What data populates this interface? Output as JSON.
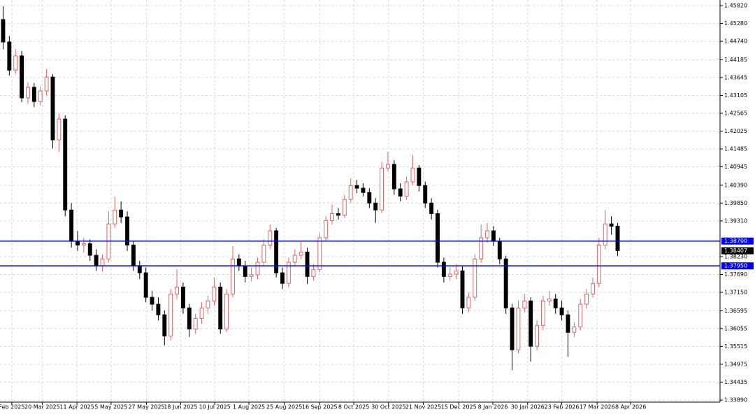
{
  "chart_data": {
    "type": "candlestick",
    "up_color": "#e06666",
    "down_color": "#000000",
    "grid": true,
    "xlim": [
      -0.5,
      115.5
    ],
    "ylim": [
      1.3383,
      1.4599
    ],
    "xticks": [
      {
        "value": 1.4,
        "label": "Feb 2025"
      },
      {
        "value": 6.3,
        "label": "20 Mar 2025"
      },
      {
        "value": 11.9,
        "label": "11 Apr 2025"
      },
      {
        "value": 17.4,
        "label": "5 May 2025"
      },
      {
        "value": 23.1,
        "label": "27 May 2025"
      },
      {
        "value": 28.6,
        "label": "18 Jun 2025"
      },
      {
        "value": 34.1,
        "label": "10 Jul 2025"
      },
      {
        "value": 39.6,
        "label": "1 Aug 2025"
      },
      {
        "value": 45.3,
        "label": "25 Aug 2025"
      },
      {
        "value": 51,
        "label": "16 Sep 2025"
      },
      {
        "value": 56.5,
        "label": "8 Oct 2025"
      },
      {
        "value": 62.1,
        "label": "30 Oct 2025"
      },
      {
        "value": 67.7,
        "label": "21 Nov 2025"
      },
      {
        "value": 73.4,
        "label": "15 Dec 2025"
      },
      {
        "value": 78.9,
        "label": "8 Jan 2026"
      },
      {
        "value": 84.5,
        "label": "30 Jan 2026"
      },
      {
        "value": 90,
        "label": "23 Feb 2026"
      },
      {
        "value": 95.7,
        "label": "17 Mar 2026"
      },
      {
        "value": 101.1,
        "label": "8 Apr 2026"
      }
    ],
    "yticks": [
      {
        "value": 1.4582,
        "label": "1.45820"
      },
      {
        "value": 1.4528,
        "label": "1.45280"
      },
      {
        "value": 1.4474,
        "label": "1.44740"
      },
      {
        "value": 1.44185,
        "label": "1.44185"
      },
      {
        "value": 1.43645,
        "label": "1.43645"
      },
      {
        "value": 1.43105,
        "label": "1.43105"
      },
      {
        "value": 1.42565,
        "label": "1.42565"
      },
      {
        "value": 1.42025,
        "label": "1.42025"
      },
      {
        "value": 1.41485,
        "label": "1.41485"
      },
      {
        "value": 1.40945,
        "label": "1.40945"
      },
      {
        "value": 1.4039,
        "label": "1.40390"
      },
      {
        "value": 1.3985,
        "label": "1.39850"
      },
      {
        "value": 1.3931,
        "label": "1.39310"
      },
      {
        "value": 1.3823,
        "label": "1.38230"
      },
      {
        "value": 1.3769,
        "label": "1.37690"
      },
      {
        "value": 1.3715,
        "label": "1.37150"
      },
      {
        "value": 1.36595,
        "label": "1.36595"
      },
      {
        "value": 1.36055,
        "label": "1.36055"
      },
      {
        "value": 1.35515,
        "label": "1.35515"
      },
      {
        "value": 1.34975,
        "label": "1.34975"
      },
      {
        "value": 1.34435,
        "label": "1.34435"
      },
      {
        "value": 1.3389,
        "label": "1.33890"
      }
    ],
    "hlines": [
      {
        "value": 1.387,
        "label": "1.38700",
        "color": "#0000ff"
      },
      {
        "value": 1.3795,
        "label": "1.37950",
        "color": "#0000ff"
      }
    ],
    "current_price": {
      "value": 1.38407,
      "label": "1.38407",
      "color": "#000000"
    },
    "ohlc": [
      [
        1.454,
        1.458,
        1.445,
        1.4472
      ],
      [
        1.4472,
        1.449,
        1.437,
        1.4387
      ],
      [
        1.4387,
        1.445,
        1.4375,
        1.443
      ],
      [
        1.443,
        1.4445,
        1.429,
        1.4303
      ],
      [
        1.4303,
        1.435,
        1.4285,
        1.4335
      ],
      [
        1.4335,
        1.4348,
        1.4275,
        1.4292
      ],
      [
        1.4292,
        1.4338,
        1.428,
        1.4324
      ],
      [
        1.4324,
        1.439,
        1.431,
        1.4366
      ],
      [
        1.4366,
        1.4375,
        1.415,
        1.4176
      ],
      [
        1.4176,
        1.4255,
        1.414,
        1.4239
      ],
      [
        1.4239,
        1.425,
        1.3945,
        1.3964
      ],
      [
        1.3964,
        1.3985,
        1.385,
        1.3869
      ],
      [
        1.3869,
        1.39,
        1.384,
        1.3858
      ],
      [
        1.3858,
        1.388,
        1.3835,
        1.3862
      ],
      [
        1.3862,
        1.3875,
        1.381,
        1.3827
      ],
      [
        1.3827,
        1.3845,
        1.378,
        1.3795
      ],
      [
        1.3795,
        1.383,
        1.3778,
        1.3816
      ],
      [
        1.3816,
        1.396,
        1.3805,
        1.3922
      ],
      [
        1.3922,
        1.4005,
        1.391,
        1.3964
      ],
      [
        1.3964,
        1.399,
        1.3925,
        1.3943
      ],
      [
        1.3943,
        1.396,
        1.384,
        1.3858
      ],
      [
        1.3858,
        1.387,
        1.378,
        1.3795
      ],
      [
        1.3795,
        1.381,
        1.3755,
        1.3774
      ],
      [
        1.3774,
        1.379,
        1.3685,
        1.37
      ],
      [
        1.37,
        1.372,
        1.366,
        1.3679
      ],
      [
        1.3679,
        1.37,
        1.363,
        1.3647
      ],
      [
        1.3647,
        1.366,
        1.3555,
        1.3583
      ],
      [
        1.3583,
        1.3725,
        1.357,
        1.371
      ],
      [
        1.371,
        1.3785,
        1.3695,
        1.3731
      ],
      [
        1.3731,
        1.3745,
        1.365,
        1.3668
      ],
      [
        1.3668,
        1.368,
        1.358,
        1.3604
      ],
      [
        1.3604,
        1.365,
        1.359,
        1.3636
      ],
      [
        1.3636,
        1.3685,
        1.362,
        1.3668
      ],
      [
        1.3668,
        1.3705,
        1.365,
        1.3689
      ],
      [
        1.3689,
        1.376,
        1.3675,
        1.3731
      ],
      [
        1.3731,
        1.3745,
        1.359,
        1.3604
      ],
      [
        1.3604,
        1.3725,
        1.3595,
        1.371
      ],
      [
        1.371,
        1.3855,
        1.37,
        1.3816
      ],
      [
        1.3816,
        1.383,
        1.378,
        1.3795
      ],
      [
        1.3795,
        1.381,
        1.3745,
        1.3763
      ],
      [
        1.3763,
        1.379,
        1.3748,
        1.3768
      ],
      [
        1.3768,
        1.382,
        1.3755,
        1.3806
      ],
      [
        1.3806,
        1.3875,
        1.3795,
        1.3858
      ],
      [
        1.3858,
        1.392,
        1.3845,
        1.3901
      ],
      [
        1.3901,
        1.391,
        1.376,
        1.3774
      ],
      [
        1.3774,
        1.379,
        1.3725,
        1.3742
      ],
      [
        1.3742,
        1.382,
        1.373,
        1.3806
      ],
      [
        1.3806,
        1.3845,
        1.3795,
        1.3827
      ],
      [
        1.3827,
        1.387,
        1.3815,
        1.3837
      ],
      [
        1.3837,
        1.385,
        1.374,
        1.3763
      ],
      [
        1.3763,
        1.38,
        1.375,
        1.3784
      ],
      [
        1.3784,
        1.3895,
        1.3775,
        1.388
      ],
      [
        1.388,
        1.3945,
        1.387,
        1.3932
      ],
      [
        1.3932,
        1.398,
        1.392,
        1.3953
      ],
      [
        1.3953,
        1.397,
        1.3935,
        1.3948
      ],
      [
        1.3948,
        1.401,
        1.394,
        1.3996
      ],
      [
        1.3996,
        1.406,
        1.3985,
        1.4038
      ],
      [
        1.4038,
        1.4055,
        1.4015,
        1.403
      ],
      [
        1.403,
        1.4045,
        1.4005,
        1.4017
      ],
      [
        1.4017,
        1.403,
        1.397,
        1.3985
      ],
      [
        1.3985,
        1.4,
        1.3925,
        1.3964
      ],
      [
        1.3964,
        1.411,
        1.3955,
        1.4091
      ],
      [
        1.4091,
        1.414,
        1.408,
        1.4102
      ],
      [
        1.4102,
        1.4115,
        1.401,
        1.4028
      ],
      [
        1.4028,
        1.4045,
        1.399,
        1.4006
      ],
      [
        1.4006,
        1.4065,
        1.3995,
        1.4049
      ],
      [
        1.4049,
        1.413,
        1.404,
        1.4091
      ],
      [
        1.4091,
        1.41,
        1.402,
        1.4038
      ],
      [
        1.4038,
        1.405,
        1.397,
        1.3985
      ],
      [
        1.3985,
        1.4,
        1.3935,
        1.3953
      ],
      [
        1.3953,
        1.3965,
        1.379,
        1.3806
      ],
      [
        1.3806,
        1.382,
        1.3745,
        1.3763
      ],
      [
        1.3763,
        1.379,
        1.375,
        1.377
      ],
      [
        1.377,
        1.38,
        1.3755,
        1.378
      ],
      [
        1.378,
        1.3795,
        1.365,
        1.3668
      ],
      [
        1.3668,
        1.3715,
        1.3655,
        1.37
      ],
      [
        1.37,
        1.383,
        1.369,
        1.3816
      ],
      [
        1.3816,
        1.392,
        1.3805,
        1.388
      ],
      [
        1.388,
        1.3925,
        1.3865,
        1.3901
      ],
      [
        1.3901,
        1.3915,
        1.3855,
        1.3869
      ],
      [
        1.3869,
        1.388,
        1.38,
        1.3816
      ],
      [
        1.3816,
        1.3825,
        1.365,
        1.3668
      ],
      [
        1.3668,
        1.368,
        1.348,
        1.3541
      ],
      [
        1.3541,
        1.369,
        1.353,
        1.3668
      ],
      [
        1.3668,
        1.371,
        1.3655,
        1.3689
      ],
      [
        1.3689,
        1.37,
        1.3505,
        1.3552
      ],
      [
        1.3552,
        1.363,
        1.354,
        1.3615
      ],
      [
        1.3615,
        1.3705,
        1.36,
        1.3689
      ],
      [
        1.3689,
        1.372,
        1.3675,
        1.3695
      ],
      [
        1.3695,
        1.371,
        1.365,
        1.3668
      ],
      [
        1.3668,
        1.369,
        1.363,
        1.3647
      ],
      [
        1.3647,
        1.366,
        1.352,
        1.3594
      ],
      [
        1.3594,
        1.3625,
        1.358,
        1.361
      ],
      [
        1.361,
        1.3695,
        1.36,
        1.3679
      ],
      [
        1.3679,
        1.3725,
        1.3665,
        1.371
      ],
      [
        1.371,
        1.376,
        1.37,
        1.3742
      ],
      [
        1.3742,
        1.388,
        1.373,
        1.3858
      ],
      [
        1.3858,
        1.3965,
        1.3845,
        1.3922
      ],
      [
        1.3922,
        1.3945,
        1.389,
        1.3915
      ],
      [
        1.3915,
        1.3925,
        1.3825,
        1.3841
      ]
    ]
  }
}
